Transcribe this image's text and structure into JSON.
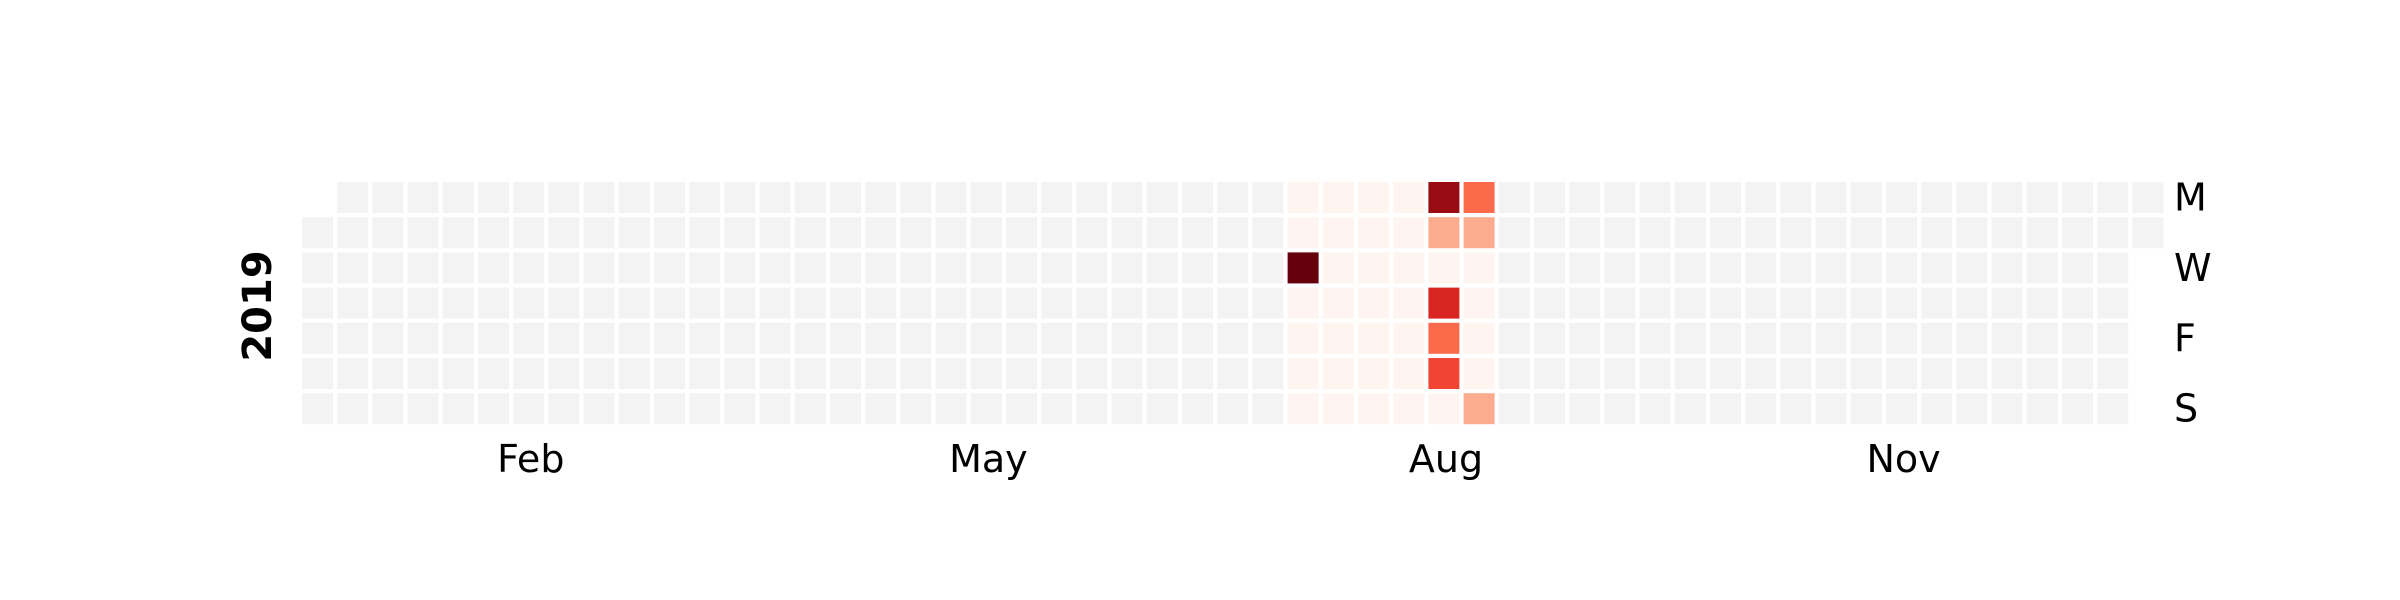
{
  "chart_data": {
    "type": "heatmap",
    "subtype": "calendar",
    "year_label": "2019",
    "x_tick_labels": [
      {
        "label": "Feb",
        "week": 6.5
      },
      {
        "label": "May",
        "week": 19.5
      },
      {
        "label": "Aug",
        "week": 32.5
      },
      {
        "label": "Nov",
        "week": 45.5
      }
    ],
    "y_tick_labels": [
      {
        "label": "M",
        "weekday": 0
      },
      {
        "label": "W",
        "weekday": 2
      },
      {
        "label": "F",
        "weekday": 4
      },
      {
        "label": "S",
        "weekday": 6
      }
    ],
    "start_date": "2019-01-01",
    "end_date": "2019-12-31",
    "first_weekday": "Monday",
    "colormap": "Reds",
    "missing_color": "#f3f3f3",
    "value_range": [
      0,
      10
    ],
    "nonzero_values": [
      {
        "date": "2019-07-17",
        "value": 10
      },
      {
        "date": "2019-08-12",
        "value": 9
      },
      {
        "date": "2019-08-15",
        "value": 7
      },
      {
        "date": "2019-08-17",
        "value": 6
      },
      {
        "date": "2019-08-16",
        "value": 5
      },
      {
        "date": "2019-08-19",
        "value": 5
      },
      {
        "date": "2019-08-13",
        "value": 3
      },
      {
        "date": "2019-08-20",
        "value": 3
      },
      {
        "date": "2019-08-25",
        "value": 3
      }
    ],
    "zero_range": [
      "2019-07-15",
      "2019-08-25"
    ]
  }
}
